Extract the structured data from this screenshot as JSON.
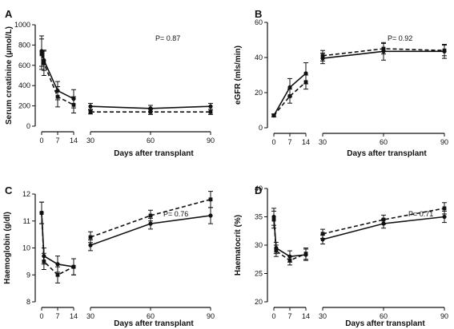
{
  "chart_data": [
    {
      "panel": "A",
      "type": "line",
      "ylabel": "Serum creatinine (µmol/L)",
      "xlabel": "Days after transplant",
      "annotation": "P= 0.87",
      "x": [
        0,
        1,
        7,
        14,
        30,
        60,
        90
      ],
      "xticks": [
        0,
        7,
        14,
        30,
        60,
        90
      ],
      "yticks": [
        0,
        200,
        400,
        600,
        800,
        1000
      ],
      "ylim": [
        0,
        1000
      ],
      "series": [
        {
          "style": "solid",
          "values": [
            740,
            650,
            350,
            270,
            195,
            175,
            195
          ],
          "errors": [
            150,
            100,
            90,
            90,
            30,
            30,
            30
          ]
        },
        {
          "style": "dashed",
          "values": [
            710,
            620,
            290,
            210,
            140,
            140,
            140
          ],
          "errors": [
            150,
            120,
            100,
            80,
            20,
            25,
            25
          ]
        }
      ]
    },
    {
      "panel": "B",
      "type": "line",
      "ylabel": "eGFR (mls/min)",
      "xlabel": "Days after transplant",
      "annotation": "P= 0.92",
      "x": [
        0,
        7,
        14,
        30,
        60,
        90
      ],
      "xticks": [
        0,
        7,
        14,
        30,
        60,
        90
      ],
      "yticks": [
        0,
        20,
        40,
        60
      ],
      "ylim": [
        0,
        60
      ],
      "series": [
        {
          "style": "solid",
          "values": [
            7,
            23,
            31,
            39.5,
            43.5,
            43.5
          ],
          "errors": [
            0.8,
            5,
            6,
            3,
            5,
            4
          ]
        },
        {
          "style": "dashed",
          "values": [
            7,
            18,
            26,
            41,
            45,
            44
          ],
          "errors": [
            0.8,
            4,
            4,
            3,
            3,
            3
          ]
        }
      ]
    },
    {
      "panel": "C",
      "type": "line",
      "ylabel": "Haemoglobin (g/dl)",
      "xlabel": "Days after transplant",
      "annotation": "P= 0.76",
      "x": [
        0,
        1,
        7,
        14,
        30,
        60,
        90
      ],
      "xticks": [
        0,
        7,
        14,
        30,
        60,
        90
      ],
      "yticks": [
        8,
        9,
        10,
        11,
        12
      ],
      "ylim": [
        8,
        12
      ],
      "series": [
        {
          "style": "solid",
          "values": [
            11.3,
            9.7,
            9.4,
            9.3,
            10.1,
            10.9,
            11.2
          ],
          "errors": [
            0.4,
            0.3,
            0.3,
            0.3,
            0.2,
            0.2,
            0.3
          ]
        },
        {
          "style": "dashed",
          "values": [
            11.3,
            9.5,
            9.0,
            9.3,
            10.4,
            11.2,
            11.8
          ],
          "errors": [
            0.4,
            0.3,
            0.3,
            0.3,
            0.2,
            0.2,
            0.3
          ]
        }
      ]
    },
    {
      "panel": "D",
      "type": "line",
      "ylabel": "Haematocrit (%)",
      "xlabel": "Days after transplant",
      "annotation": "P= 0.71",
      "x": [
        0,
        1,
        7,
        14,
        30,
        60,
        90
      ],
      "xticks": [
        0,
        7,
        14,
        30,
        60,
        90
      ],
      "yticks": [
        20,
        25,
        30,
        35,
        40
      ],
      "ylim": [
        20,
        40
      ],
      "series": [
        {
          "style": "solid",
          "values": [
            35,
            29.5,
            28,
            28.3,
            31,
            33.8,
            35
          ],
          "errors": [
            1.5,
            1,
            1,
            1,
            0.8,
            0.8,
            1
          ]
        },
        {
          "style": "dashed",
          "values": [
            34.5,
            29,
            27.3,
            28.5,
            32,
            34.5,
            36.5
          ],
          "errors": [
            1.5,
            1,
            0.8,
            1,
            0.8,
            0.8,
            1
          ]
        }
      ]
    }
  ]
}
